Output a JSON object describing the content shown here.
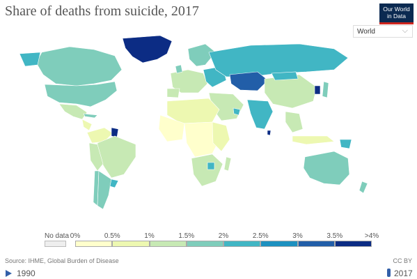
{
  "header": {
    "title": "Share of deaths from suicide, 2017",
    "logo_line1": "Our World",
    "logo_line2": "in Data",
    "region_selected": "World"
  },
  "legend": {
    "no_data_label": "No data",
    "ticks": [
      "0%",
      "0.5%",
      "1%",
      "1.5%",
      "2%",
      "2.5%",
      "3%",
      "3.5%",
      ">4%"
    ],
    "colors": [
      "#ffffcc",
      "#edf8b1",
      "#c7e9b4",
      "#7fcdbb",
      "#41b6c4",
      "#1d91c0",
      "#225ea8",
      "#0c2c84"
    ]
  },
  "footer": {
    "source": "Source: IHME, Global Burden of Disease",
    "license": "CC BY"
  },
  "timeline": {
    "start_year": "1990",
    "end_year": "2017"
  },
  "map_colors": {
    "ocean": "#ffffff",
    "border": "#ffffff"
  }
}
